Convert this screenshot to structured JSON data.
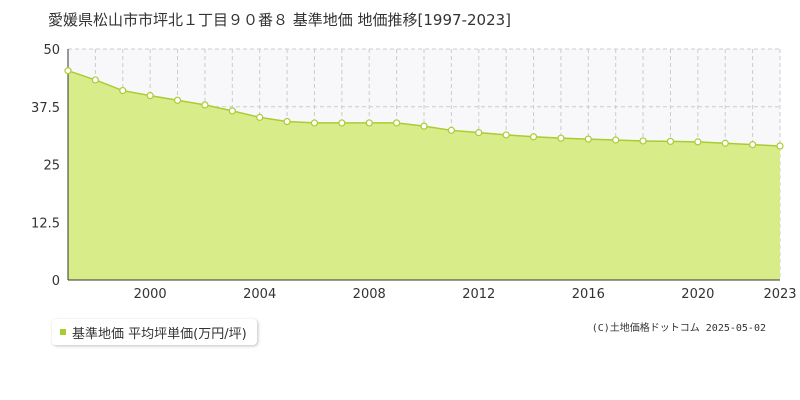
{
  "chart_data": {
    "type": "area",
    "title": "愛媛県松山市市坪北１丁目９０番８ 基準地価 地価推移[1997-2023]",
    "x": [
      1997,
      1998,
      1999,
      2000,
      2001,
      2002,
      2003,
      2004,
      2005,
      2006,
      2007,
      2008,
      2009,
      2010,
      2011,
      2012,
      2013,
      2014,
      2015,
      2016,
      2017,
      2018,
      2019,
      2020,
      2021,
      2022,
      2023
    ],
    "series": [
      {
        "name": "基準地価 平均坪単価(万円/坪)",
        "values": [
          45.3,
          43.3,
          41.0,
          39.9,
          38.9,
          37.9,
          36.6,
          35.2,
          34.3,
          34.0,
          34.0,
          34.0,
          34.0,
          33.3,
          32.4,
          31.9,
          31.4,
          31.0,
          30.7,
          30.5,
          30.3,
          30.1,
          30.0,
          29.9,
          29.6,
          29.3,
          29.0
        ],
        "color": "#aacc33",
        "fill": "#d9ec8a"
      }
    ],
    "ylim": [
      0,
      50
    ],
    "yticks": [
      "0",
      "12.5",
      "25",
      "37.5",
      "50"
    ],
    "xticks": [
      "2000",
      "2004",
      "2008",
      "2012",
      "2016",
      "2020",
      "2023"
    ],
    "xlim": [
      1997,
      2023
    ],
    "grid": true,
    "legend_position": "bottom-left"
  },
  "legend": {
    "label": "基準地価 平均坪単価(万円/坪)",
    "color": "#aacc33"
  },
  "copyright": "(C)土地価格ドットコム 2025-05-02"
}
